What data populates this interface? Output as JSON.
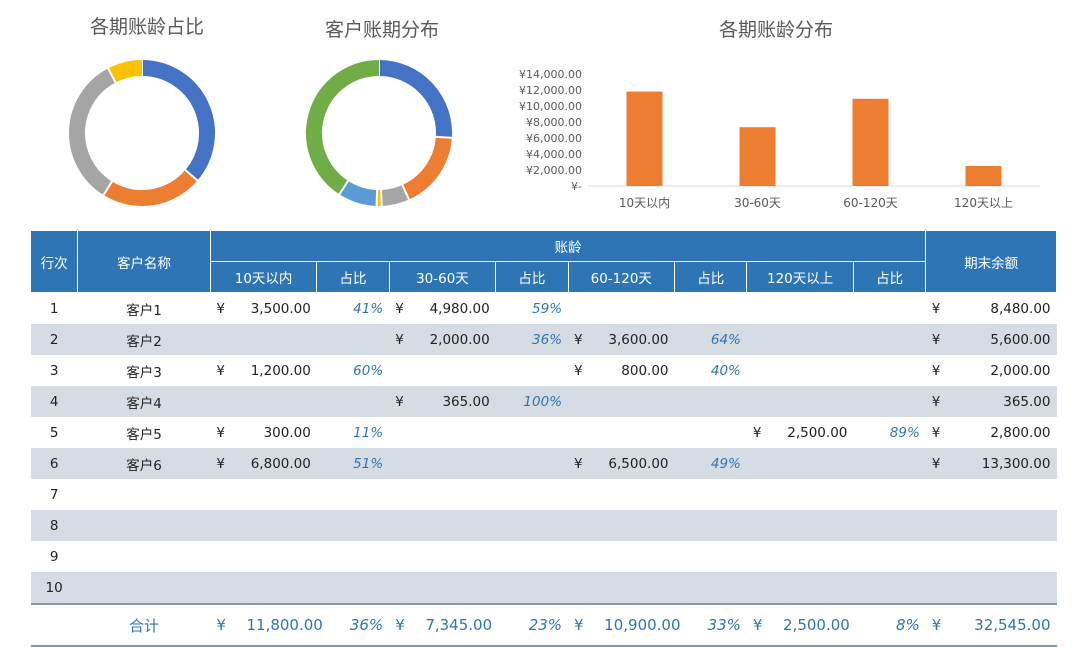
{
  "charts": {
    "pie1_title": "各期账龄占比",
    "pie2_title": "客户账期分布",
    "bar_title": "各期账龄分布"
  },
  "chart_data": [
    {
      "type": "pie",
      "title": "各期账龄占比",
      "labels": [
        "10天以内",
        "30-60天",
        "60-120天",
        "120天以上"
      ],
      "values": [
        11800,
        7345,
        10900,
        2500
      ],
      "colors": [
        "#4472c4",
        "#ed7d31",
        "#a5a5a5",
        "#ffc000"
      ]
    },
    {
      "type": "pie",
      "title": "客户账期分布",
      "labels": [
        "客户1",
        "客户2",
        "客户3",
        "客户4",
        "客户5",
        "客户6"
      ],
      "values": [
        8480,
        5600,
        2000,
        365,
        2800,
        13300
      ],
      "colors": [
        "#4472c4",
        "#ed7d31",
        "#a5a5a5",
        "#ffc000",
        "#5b9bd5",
        "#70ad47"
      ]
    },
    {
      "type": "bar",
      "title": "各期账龄分布",
      "categories": [
        "10天以内",
        "30-60天",
        "60-120天",
        "120天以上"
      ],
      "values": [
        11800,
        7345,
        10900,
        2500
      ],
      "ylim": [
        0,
        14000
      ],
      "yticks": [
        "¥-",
        "¥2,000.00",
        "¥4,000.00",
        "¥6,000.00",
        "¥8,000.00",
        "¥10,000.00",
        "¥12,000.00",
        "¥14,000.00"
      ],
      "color": "#ed7d31"
    }
  ],
  "table": {
    "h_row": "行次",
    "h_name": "客户名称",
    "h_aging": "账龄",
    "h_end": "期末余额",
    "h_p1": "10天以内",
    "h_p2": "30-60天",
    "h_p3": "60-120天",
    "h_p4": "120天以上",
    "h_pct": "占比",
    "currency": "¥",
    "rows": [
      {
        "no": "1",
        "name": "客户1",
        "a1": "3,500.00",
        "p1": "41%",
        "a2": "4,980.00",
        "p2": "59%",
        "a3": "",
        "p3": "",
        "a4": "",
        "p4": "",
        "end": "8,480.00"
      },
      {
        "no": "2",
        "name": "客户2",
        "a1": "",
        "p1": "",
        "a2": "2,000.00",
        "p2": "36%",
        "a3": "3,600.00",
        "p3": "64%",
        "a4": "",
        "p4": "",
        "end": "5,600.00"
      },
      {
        "no": "3",
        "name": "客户3",
        "a1": "1,200.00",
        "p1": "60%",
        "a2": "",
        "p2": "",
        "a3": "800.00",
        "p3": "40%",
        "a4": "",
        "p4": "",
        "end": "2,000.00"
      },
      {
        "no": "4",
        "name": "客户4",
        "a1": "",
        "p1": "",
        "a2": "365.00",
        "p2": "100%",
        "a3": "",
        "p3": "",
        "a4": "",
        "p4": "",
        "end": "365.00"
      },
      {
        "no": "5",
        "name": "客户5",
        "a1": "300.00",
        "p1": "11%",
        "a2": "",
        "p2": "",
        "a3": "",
        "p3": "",
        "a4": "2,500.00",
        "p4": "89%",
        "end": "2,800.00"
      },
      {
        "no": "6",
        "name": "客户6",
        "a1": "6,800.00",
        "p1": "51%",
        "a2": "",
        "p2": "",
        "a3": "6,500.00",
        "p3": "49%",
        "a4": "",
        "p4": "",
        "end": "13,300.00"
      },
      {
        "no": "7",
        "name": "",
        "a1": "",
        "p1": "",
        "a2": "",
        "p2": "",
        "a3": "",
        "p3": "",
        "a4": "",
        "p4": "",
        "end": ""
      },
      {
        "no": "8",
        "name": "",
        "a1": "",
        "p1": "",
        "a2": "",
        "p2": "",
        "a3": "",
        "p3": "",
        "a4": "",
        "p4": "",
        "end": ""
      },
      {
        "no": "9",
        "name": "",
        "a1": "",
        "p1": "",
        "a2": "",
        "p2": "",
        "a3": "",
        "p3": "",
        "a4": "",
        "p4": "",
        "end": ""
      },
      {
        "no": "10",
        "name": "",
        "a1": "",
        "p1": "",
        "a2": "",
        "p2": "",
        "a3": "",
        "p3": "",
        "a4": "",
        "p4": "",
        "end": ""
      }
    ],
    "total": {
      "label": "合计",
      "a1": "11,800.00",
      "p1": "36%",
      "a2": "7,345.00",
      "p2": "23%",
      "a3": "10,900.00",
      "p3": "33%",
      "a4": "2,500.00",
      "p4": "8%",
      "end": "32,545.00"
    }
  }
}
